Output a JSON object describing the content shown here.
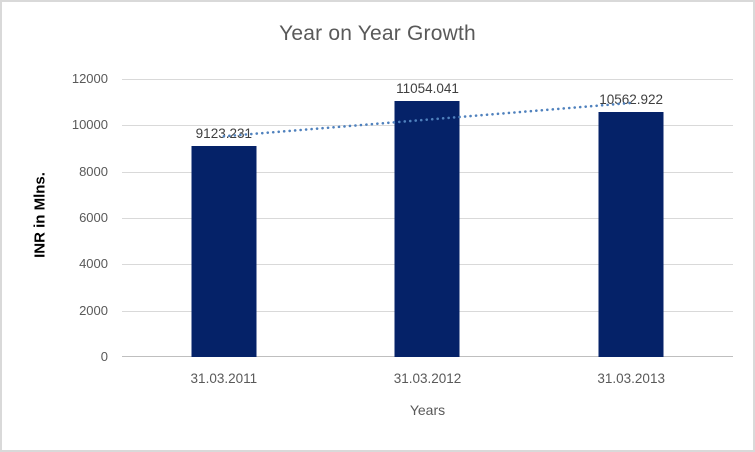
{
  "chart_data": {
    "type": "bar",
    "title": "Year on Year Growth",
    "xlabel": "Years",
    "ylabel": "INR in Mlns.",
    "categories": [
      "31.03.2011",
      "31.03.2012",
      "31.03.2013"
    ],
    "values": [
      9123.231,
      11054.041,
      10562.922
    ],
    "ylim": [
      0,
      12000
    ],
    "yticks": [
      0,
      2000,
      4000,
      6000,
      8000,
      10000,
      12000
    ],
    "grid": "horizontal",
    "legend": "none",
    "trendline": {
      "type": "linear",
      "style": "dotted"
    },
    "colors": {
      "bar": "#052268",
      "trendline": "#4f81bd",
      "gridline": "#d9d9d9",
      "axis_line": "#bfbfbf",
      "title_text": "#595959",
      "tick_text": "#595959",
      "data_label_text": "#404040",
      "canvas_border": "#d9d9d9"
    }
  }
}
